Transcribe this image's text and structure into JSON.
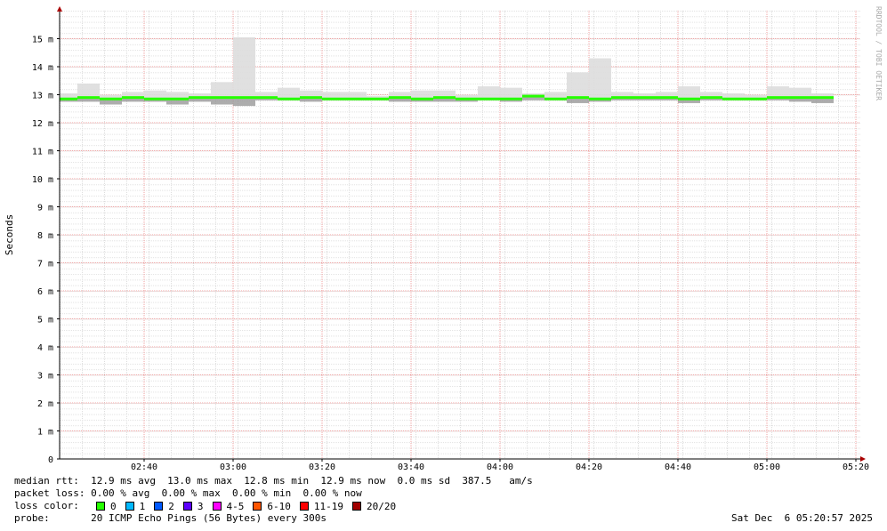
{
  "chart_data": {
    "type": "smoke",
    "y_label": "Seconds",
    "side_label": "RRDTOOL / TOBI OETIKER",
    "x": [
      140,
      145,
      150,
      155,
      160,
      165,
      170,
      175,
      180,
      185,
      190,
      195,
      200,
      205,
      210,
      215,
      220,
      225,
      230,
      235,
      240,
      245,
      250,
      255,
      260,
      265,
      270,
      275,
      280,
      285,
      290,
      295,
      300,
      305,
      310
    ],
    "step": 5,
    "series": [
      {
        "name": "median",
        "color": "#26ff00",
        "values": [
          12.85,
          12.9,
          12.85,
          12.9,
          12.85,
          12.85,
          12.9,
          12.9,
          12.9,
          12.9,
          12.85,
          12.9,
          12.85,
          12.85,
          12.85,
          12.9,
          12.85,
          12.9,
          12.85,
          12.85,
          12.85,
          12.95,
          12.85,
          12.9,
          12.85,
          12.9,
          12.9,
          12.9,
          12.85,
          12.9,
          12.85,
          12.85,
          12.9,
          12.9,
          12.9
        ]
      },
      {
        "name": "max",
        "color": "#dddddd",
        "values": [
          13.05,
          13.4,
          13.0,
          13.1,
          13.15,
          13.1,
          13.05,
          13.45,
          15.05,
          13.1,
          13.25,
          13.15,
          13.1,
          13.1,
          12.95,
          13.1,
          13.15,
          13.15,
          13.0,
          13.3,
          13.25,
          13.05,
          13.1,
          13.8,
          14.3,
          13.1,
          13.05,
          13.1,
          13.3,
          13.1,
          13.05,
          13.0,
          13.3,
          13.25,
          13.05
        ]
      },
      {
        "name": "min",
        "color": "#999999",
        "values": [
          12.75,
          12.75,
          12.65,
          12.75,
          12.75,
          12.65,
          12.75,
          12.65,
          12.6,
          12.8,
          12.8,
          12.75,
          12.8,
          12.8,
          12.8,
          12.75,
          12.75,
          12.75,
          12.75,
          12.8,
          12.75,
          12.8,
          12.8,
          12.7,
          12.75,
          12.8,
          12.8,
          12.8,
          12.7,
          12.8,
          12.8,
          12.8,
          12.8,
          12.75,
          12.7
        ]
      }
    ],
    "xlim": [
      141,
      321
    ],
    "xticks": [
      {
        "value": 160,
        "label": "02:40"
      },
      {
        "value": 180,
        "label": "03:00"
      },
      {
        "value": 200,
        "label": "03:20"
      },
      {
        "value": 220,
        "label": "03:40"
      },
      {
        "value": 240,
        "label": "04:00"
      },
      {
        "value": 260,
        "label": "04:20"
      },
      {
        "value": 280,
        "label": "04:40"
      },
      {
        "value": 300,
        "label": "05:00"
      },
      {
        "value": 320,
        "label": "05:20"
      }
    ],
    "ylim": [
      0,
      16
    ],
    "yticks": [
      0,
      {
        "value": 1,
        "label": "1 m"
      },
      {
        "value": 2,
        "label": "2 m"
      },
      {
        "value": 3,
        "label": "3 m"
      },
      {
        "value": 4,
        "label": "4 m"
      },
      {
        "value": 5,
        "label": "5 m"
      },
      {
        "value": 6,
        "label": "6 m"
      },
      {
        "value": 7,
        "label": "7 m"
      },
      {
        "value": 8,
        "label": "8 m"
      },
      {
        "value": 9,
        "label": "9 m"
      },
      {
        "value": 10,
        "label": "10 m"
      },
      {
        "value": 11,
        "label": "11 m"
      },
      {
        "value": 12,
        "label": "12 m"
      },
      {
        "value": 13,
        "label": "13 m"
      },
      {
        "value": 14,
        "label": "14 m"
      },
      {
        "value": 15,
        "label": "15 m"
      }
    ],
    "grid": true,
    "footer": {
      "median_rtt": "median rtt:  12.9 ms avg  13.0 ms max  12.8 ms min  12.9 ms now  0.0 ms sd  387.5   am/s",
      "packet_loss": "packet loss: 0.00 % avg  0.00 % max  0.00 % min  0.00 % now",
      "loss_color_label": "loss color:",
      "loss_colors": [
        {
          "label": "0",
          "color": "#26ff00"
        },
        {
          "label": "1",
          "color": "#00b8ff"
        },
        {
          "label": "2",
          "color": "#0059ff"
        },
        {
          "label": "3",
          "color": "#5e00ff"
        },
        {
          "label": "4-5",
          "color": "#ff00ff"
        },
        {
          "label": "6-10",
          "color": "#ff5500"
        },
        {
          "label": "11-19",
          "color": "#ff0000"
        },
        {
          "label": "20/20",
          "color": "#a10000"
        }
      ],
      "probe": "probe:       20 ICMP Echo Pings (56 Bytes) every 300s",
      "date": "Sat Dec  6 05:20:57 2025"
    }
  }
}
